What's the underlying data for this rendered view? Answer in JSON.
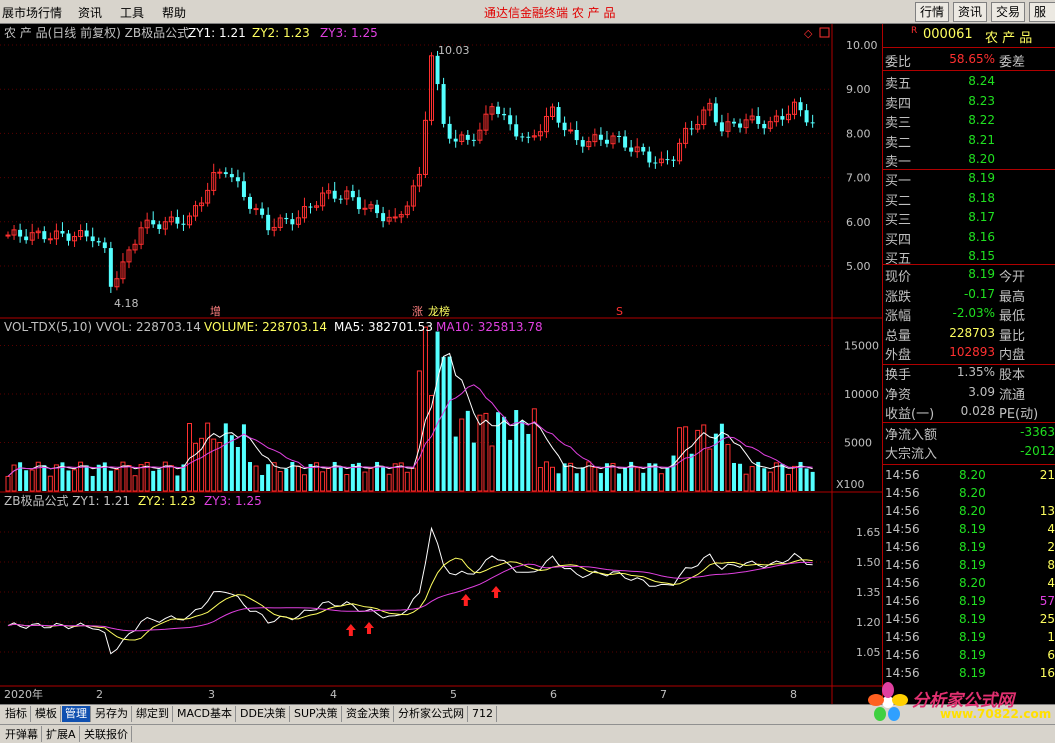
{
  "menubar": {
    "items": [
      "展市场行情",
      "资讯",
      "工具",
      "帮助"
    ],
    "center_title": "通达信金融终端   农 产 品",
    "right_buttons": [
      "行情",
      "资讯",
      "交易",
      "服务"
    ]
  },
  "main_chart": {
    "title": "农 产 品(日线 前复权) ZB极品公式",
    "indicators": [
      {
        "label": "ZY1: 1.21",
        "color": "#ffffff"
      },
      {
        "label": "ZY2: 1.23",
        "color": "#ffff60"
      },
      {
        "label": "ZY3: 1.25",
        "color": "#e040e0"
      }
    ],
    "y_ticks": [
      "10.00",
      "9.00",
      "8.00",
      "7.00",
      "6.00",
      "5.00"
    ],
    "y_values": [
      10,
      9,
      8,
      7,
      6,
      5
    ],
    "high_label": "10.03",
    "low_label": "4.18",
    "markers": [
      "增",
      "涨",
      "龙榜",
      "S"
    ]
  },
  "vol_chart": {
    "indicators": [
      {
        "label": "VOL-TDX(5,10) VVOL: 228703.14",
        "color": "#c0c0c0"
      },
      {
        "label": "VOLUME: 228703.14",
        "color": "#ffff60"
      },
      {
        "label": "MA5: 382701.53",
        "color": "#ffffff"
      },
      {
        "label": "MA10: 325813.78",
        "color": "#e040e0"
      }
    ],
    "y_ticks": [
      "15000",
      "10000",
      "5000"
    ],
    "y_values": [
      15000,
      10000,
      5000
    ],
    "unit": "X100"
  },
  "zb_chart": {
    "indicators": [
      {
        "label": "ZB极品公式 ZY1: 1.21",
        "color": "#c0c0c0"
      },
      {
        "label": "ZY2: 1.23",
        "color": "#ffff60"
      },
      {
        "label": "ZY3: 1.25",
        "color": "#e040e0"
      }
    ],
    "y_ticks": [
      "1.65",
      "1.50",
      "1.35",
      "1.20",
      "1.05"
    ],
    "y_values": [
      1.65,
      1.5,
      1.35,
      1.2,
      1.05
    ]
  },
  "x_axis": {
    "labels": [
      "2020年",
      "2",
      "3",
      "4",
      "5",
      "6",
      "7",
      "8"
    ]
  },
  "quote": {
    "code": "000061",
    "name": "农 产 品",
    "ratio_label": "委比",
    "ratio_value": "58.65%",
    "diff_label": "委差",
    "asks": [
      {
        "label": "卖五",
        "price": "8.24"
      },
      {
        "label": "卖四",
        "price": "8.23"
      },
      {
        "label": "卖三",
        "price": "8.22"
      },
      {
        "label": "卖二",
        "price": "8.21"
      },
      {
        "label": "卖一",
        "price": "8.20"
      }
    ],
    "bids": [
      {
        "label": "买一",
        "price": "8.19"
      },
      {
        "label": "买二",
        "price": "8.18"
      },
      {
        "label": "买三",
        "price": "8.17"
      },
      {
        "label": "买四",
        "price": "8.16"
      },
      {
        "label": "买五",
        "price": "8.15"
      }
    ],
    "stats": [
      {
        "label": "现价",
        "value": "8.19",
        "label2": "今开",
        "color": "#20e020"
      },
      {
        "label": "涨跌",
        "value": "-0.17",
        "label2": "最高",
        "color": "#20e020"
      },
      {
        "label": "涨幅",
        "value": "-2.03%",
        "label2": "最低",
        "color": "#20e020"
      },
      {
        "label": "总量",
        "value": "228703",
        "label2": "量比",
        "color": "#ffff60"
      },
      {
        "label": "外盘",
        "value": "102893",
        "label2": "内盘",
        "color": "#ff3030"
      }
    ],
    "stats2": [
      {
        "label": "换手",
        "value": "1.35%",
        "label2": "股本"
      },
      {
        "label": "净资",
        "value": "3.09",
        "label2": "流通"
      },
      {
        "label": "收益(一)",
        "value": "0.028",
        "label2": "PE(动)"
      }
    ],
    "flows": [
      {
        "label": "净流入额",
        "value": "-3363"
      },
      {
        "label": "大宗流入",
        "value": "-2012"
      }
    ],
    "ticks": [
      {
        "time": "14:56",
        "price": "8.20",
        "vol": "21",
        "vcolor": "#ffff60"
      },
      {
        "time": "14:56",
        "price": "8.20",
        "vol": "",
        "vcolor": "#ffff60"
      },
      {
        "time": "14:56",
        "price": "8.20",
        "vol": "13",
        "vcolor": "#ffff60"
      },
      {
        "time": "14:56",
        "price": "8.19",
        "vol": "4",
        "vcolor": "#ffff60"
      },
      {
        "time": "14:56",
        "price": "8.19",
        "vol": "2",
        "vcolor": "#ffff60"
      },
      {
        "time": "14:56",
        "price": "8.19",
        "vol": "8",
        "vcolor": "#ffff60"
      },
      {
        "time": "14:56",
        "price": "8.20",
        "vol": "4",
        "vcolor": "#ffff60"
      },
      {
        "time": "14:56",
        "price": "8.19",
        "vol": "57",
        "vcolor": "#e040e0"
      },
      {
        "time": "14:56",
        "price": "8.19",
        "vol": "25",
        "vcolor": "#ffff60"
      },
      {
        "time": "14:56",
        "price": "8.19",
        "vol": "1",
        "vcolor": "#ffff60"
      },
      {
        "time": "14:56",
        "price": "8.19",
        "vol": "6",
        "vcolor": "#ffff60"
      },
      {
        "time": "14:56",
        "price": "8.19",
        "vol": "16",
        "vcolor": "#ffff60"
      }
    ]
  },
  "tabs": [
    "指标",
    "模板",
    "管理",
    "另存为",
    "绑定到",
    "MACD基本",
    "DDE决策",
    "SUP决策",
    "资金决策",
    "分析家公式网",
    "712"
  ],
  "active_tab": "管理",
  "bottom_tabs": [
    "开弹幕",
    "扩展A",
    "关联报价"
  ],
  "watermark": {
    "text": "分析家公式网",
    "url": "www.70822.com"
  }
}
